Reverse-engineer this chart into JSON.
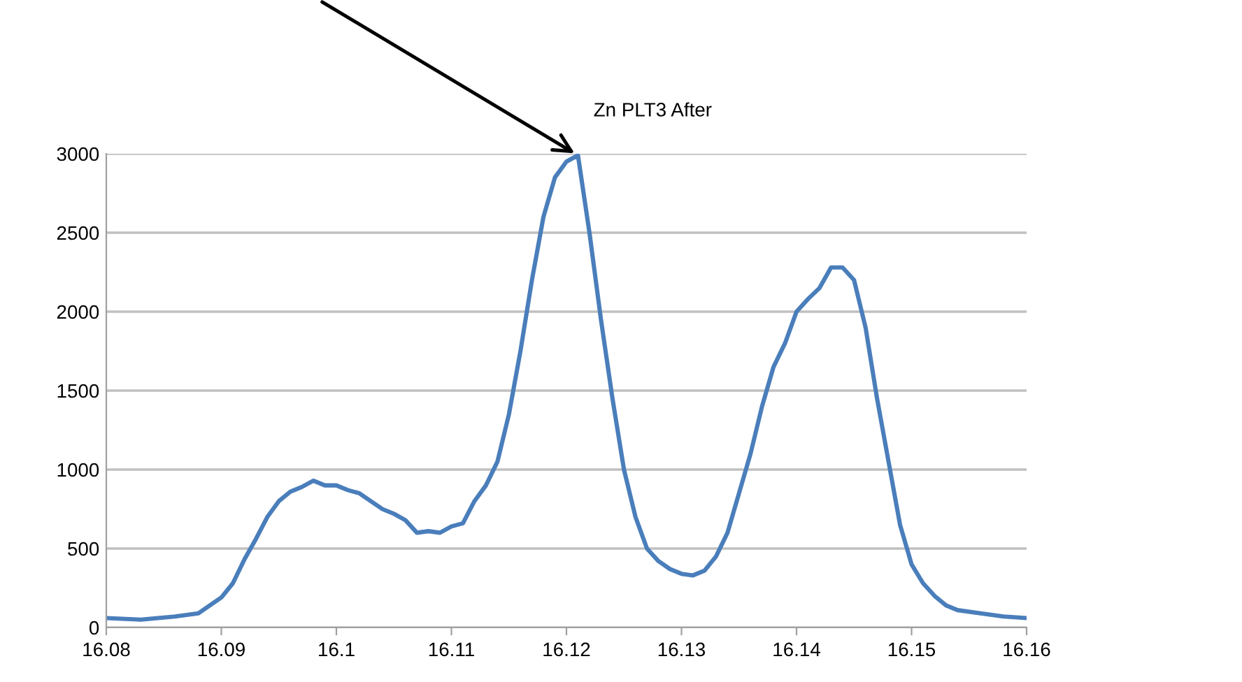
{
  "chart_data": {
    "type": "line",
    "x": [
      16.08,
      16.083,
      16.086,
      16.088,
      16.09,
      16.091,
      16.092,
      16.093,
      16.094,
      16.095,
      16.096,
      16.097,
      16.098,
      16.099,
      16.1,
      16.101,
      16.102,
      16.103,
      16.104,
      16.105,
      16.106,
      16.107,
      16.108,
      16.109,
      16.11,
      16.111,
      16.112,
      16.113,
      16.114,
      16.115,
      16.116,
      16.117,
      16.118,
      16.119,
      16.12,
      16.121,
      16.122,
      16.123,
      16.124,
      16.125,
      16.126,
      16.127,
      16.128,
      16.129,
      16.13,
      16.131,
      16.132,
      16.133,
      16.134,
      16.135,
      16.136,
      16.137,
      16.138,
      16.139,
      16.14,
      16.141,
      16.142,
      16.143,
      16.144,
      16.145,
      16.146,
      16.147,
      16.148,
      16.149,
      16.15,
      16.151,
      16.152,
      16.153,
      16.154,
      16.156,
      16.158,
      16.16
    ],
    "series": [
      {
        "color": "#4a7ebb",
        "values": [
          60,
          50,
          70,
          90,
          190,
          280,
          430,
          560,
          700,
          800,
          860,
          890,
          930,
          900,
          900,
          870,
          850,
          800,
          750,
          720,
          680,
          600,
          610,
          600,
          640,
          660,
          800,
          900,
          1050,
          1350,
          1750,
          2200,
          2600,
          2850,
          2950,
          2990,
          2500,
          1950,
          1450,
          1000,
          700,
          500,
          420,
          370,
          340,
          330,
          360,
          450,
          600,
          850,
          1100,
          1400,
          1650,
          1800,
          2000,
          2080,
          2150,
          2280,
          2280,
          2200,
          1900,
          1450,
          1050,
          650,
          400,
          280,
          200,
          140,
          110,
          90,
          70,
          60
        ]
      }
    ],
    "xlim": [
      16.08,
      16.16
    ],
    "xticks": [
      {
        "value": 16.08,
        "label": "16.08"
      },
      {
        "value": 16.09,
        "label": "16.09"
      },
      {
        "value": 16.1,
        "label": "16.1"
      },
      {
        "value": 16.11,
        "label": "16.11"
      },
      {
        "value": 16.12,
        "label": "16.12"
      },
      {
        "value": 16.13,
        "label": "16.13"
      },
      {
        "value": 16.14,
        "label": "16.14"
      },
      {
        "value": 16.15,
        "label": "16.15"
      },
      {
        "value": 16.16,
        "label": "16.16"
      }
    ],
    "ylim": [
      0,
      3000
    ],
    "yticks": [
      0,
      500,
      1000,
      1500,
      2000,
      2500,
      3000
    ],
    "grid": "y",
    "marker": "none",
    "line_style": "solid",
    "annotations": [
      {
        "text": "Zn PLT3 After",
        "x": 16.121,
        "y": 2990
      }
    ]
  }
}
